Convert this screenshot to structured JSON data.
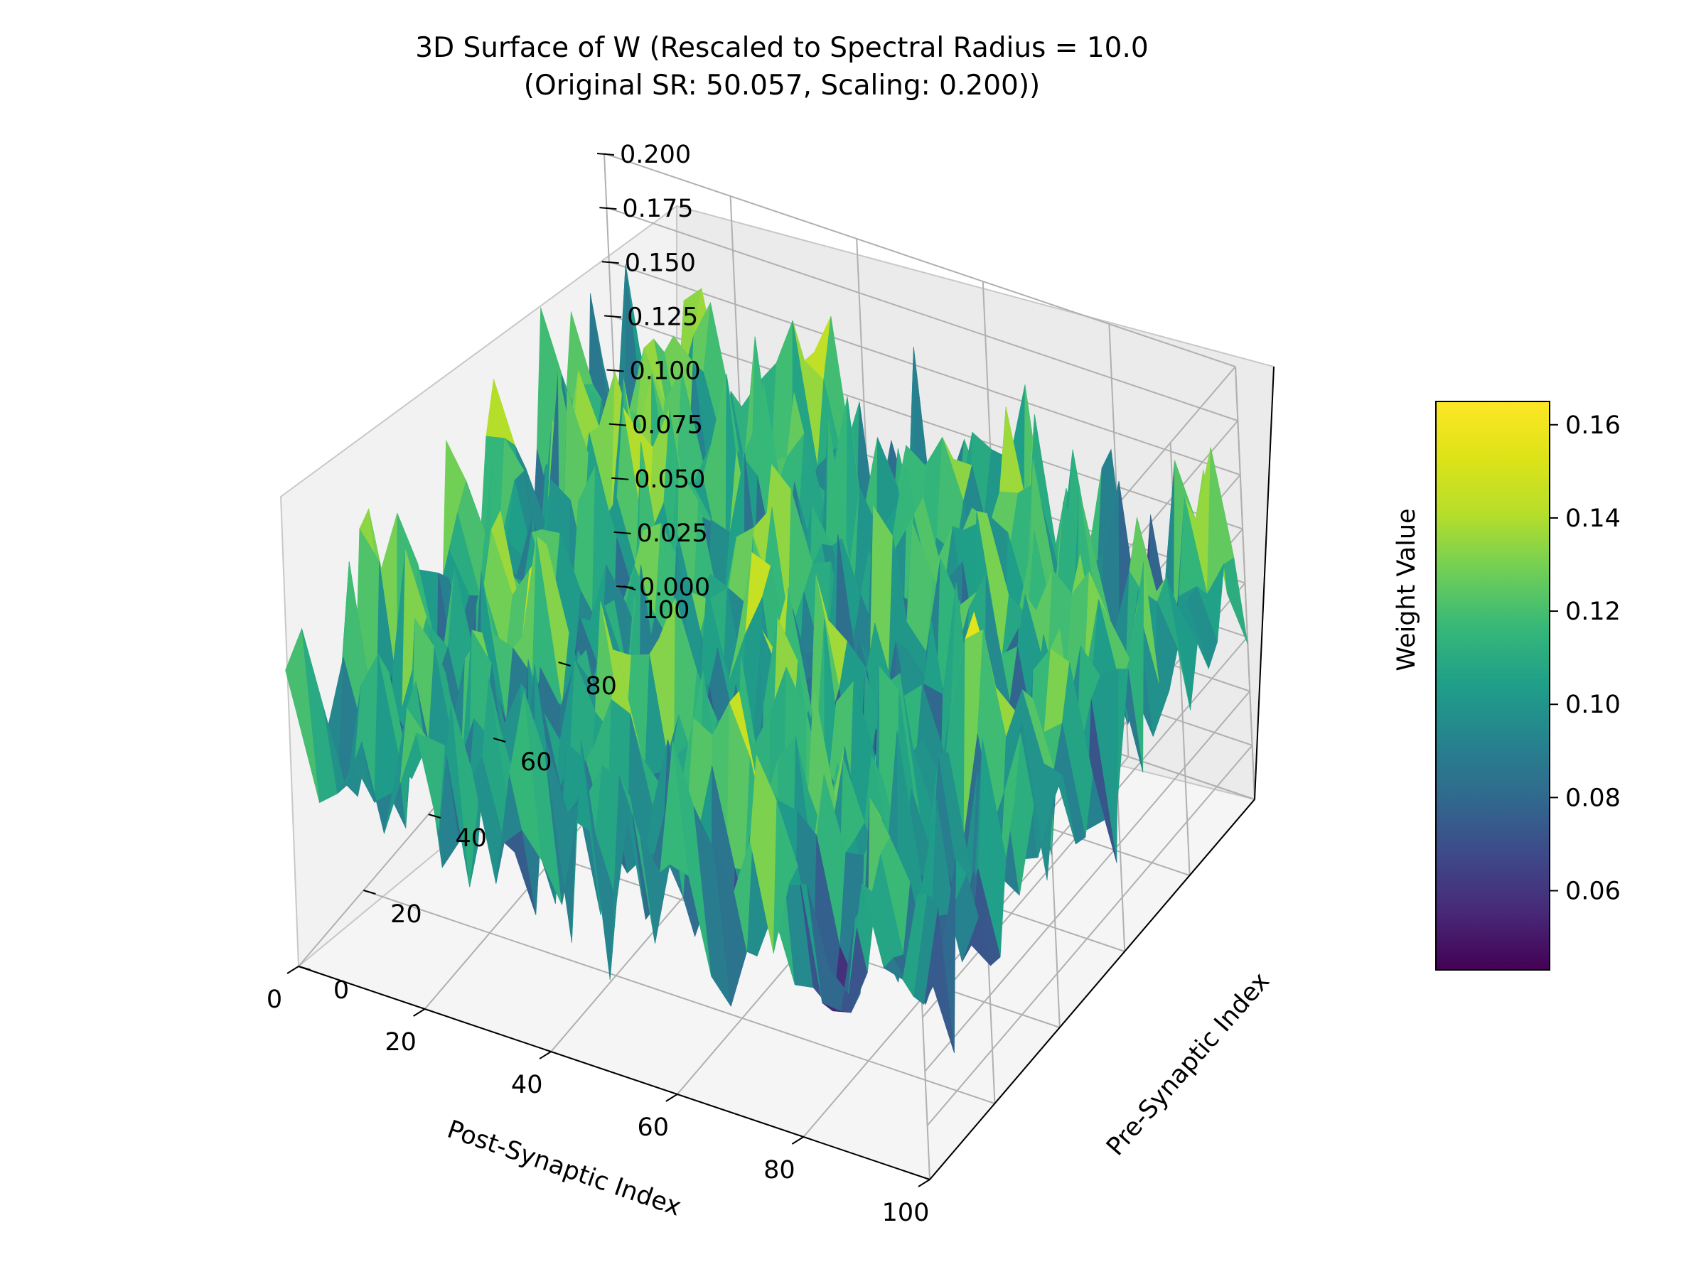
{
  "chart_data": {
    "type": "surface3d",
    "title_lines": [
      "3D Surface of W (Rescaled to Spectral Radius = 10.0",
      "(Original SR: 50.057, Scaling: 0.200))"
    ],
    "xlabel": "Post-Synaptic Index",
    "ylabel": "Pre-Synaptic Index",
    "zlabel": "Weight Value",
    "xlim": [
      0,
      100
    ],
    "ylim": [
      0,
      100
    ],
    "zlim": [
      0,
      0.2
    ],
    "xticks": [
      "0",
      "20",
      "40",
      "60",
      "80",
      "100"
    ],
    "yticks": [
      "0",
      "20",
      "40",
      "60",
      "80",
      "100"
    ],
    "zticks": [
      "0.000",
      "0.025",
      "0.050",
      "0.075",
      "0.100",
      "0.125",
      "0.150",
      "0.175",
      "0.200"
    ],
    "colormap": "viridis",
    "colorbar": {
      "range": [
        0.043,
        0.165
      ],
      "ticks": [
        "0.06",
        "0.08",
        "0.10",
        "0.12",
        "0.14",
        "0.16"
      ]
    },
    "surface": {
      "grid_size": [
        100,
        100
      ],
      "value_range": [
        0.043,
        0.165
      ],
      "approx_mean": 0.105,
      "pattern": "random noise"
    },
    "grid": true
  }
}
